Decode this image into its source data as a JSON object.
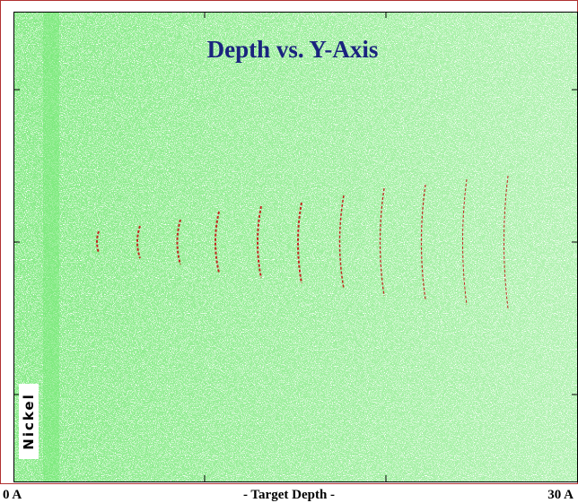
{
  "title": "Depth vs. Y-Axis",
  "x_axis": {
    "start": "0 A",
    "label": "- Target Depth -",
    "end": "30 A"
  },
  "target_label": "Nickel"
}
